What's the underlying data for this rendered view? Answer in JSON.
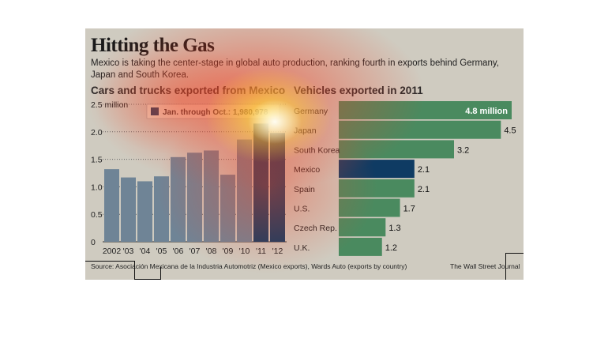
{
  "title": "Hitting the Gas",
  "subtitle": "Mexico is taking the center-stage in global auto production, ranking fourth in exports behind Germany, Japan and South Korea.",
  "source": "Source:  Asociación Mexicana de la Industria Automotriz (Mexico exports), Wards Auto (exports by country)",
  "credit": "The Wall Street Journal",
  "colors": {
    "background": "#cfcbc0",
    "bar_gray": "#6f8496",
    "bar_blue": "#0f3b63",
    "bar_green": "#4a8a5f"
  },
  "chart_data": [
    {
      "type": "bar",
      "title": "Cars and trucks exported from Mexico",
      "categories": [
        "2002",
        "'03",
        "'04",
        "'05",
        "'06",
        "'07",
        "'08",
        "'09",
        "'10",
        "'11",
        "'12"
      ],
      "values": [
        1.32,
        1.17,
        1.1,
        1.19,
        1.54,
        1.62,
        1.66,
        1.22,
        1.86,
        2.15,
        1.98
      ],
      "highlight_index": 9,
      "partial_index": 10,
      "y_ticks": [
        "0",
        "0.5",
        "1.0",
        "1.5",
        "2.0",
        "2.5 million"
      ],
      "ylim": [
        0,
        2.5
      ],
      "grid": true,
      "legend": "Jan. through Oct.: 1,980,978"
    },
    {
      "type": "bar",
      "orientation": "horizontal",
      "title": "Vehicles exported in 2011",
      "categories": [
        "Germany",
        "Japan",
        "South Korea",
        "Mexico",
        "Spain",
        "U.S.",
        "Czech Rep.",
        "U.K."
      ],
      "values": [
        4.8,
        4.5,
        3.2,
        2.1,
        2.1,
        1.7,
        1.3,
        1.2
      ],
      "value_labels": [
        "4.8 million",
        "4.5",
        "3.2",
        "2.1",
        "2.1",
        "1.7",
        "1.3",
        "1.2"
      ],
      "highlight_index": 3
    }
  ]
}
